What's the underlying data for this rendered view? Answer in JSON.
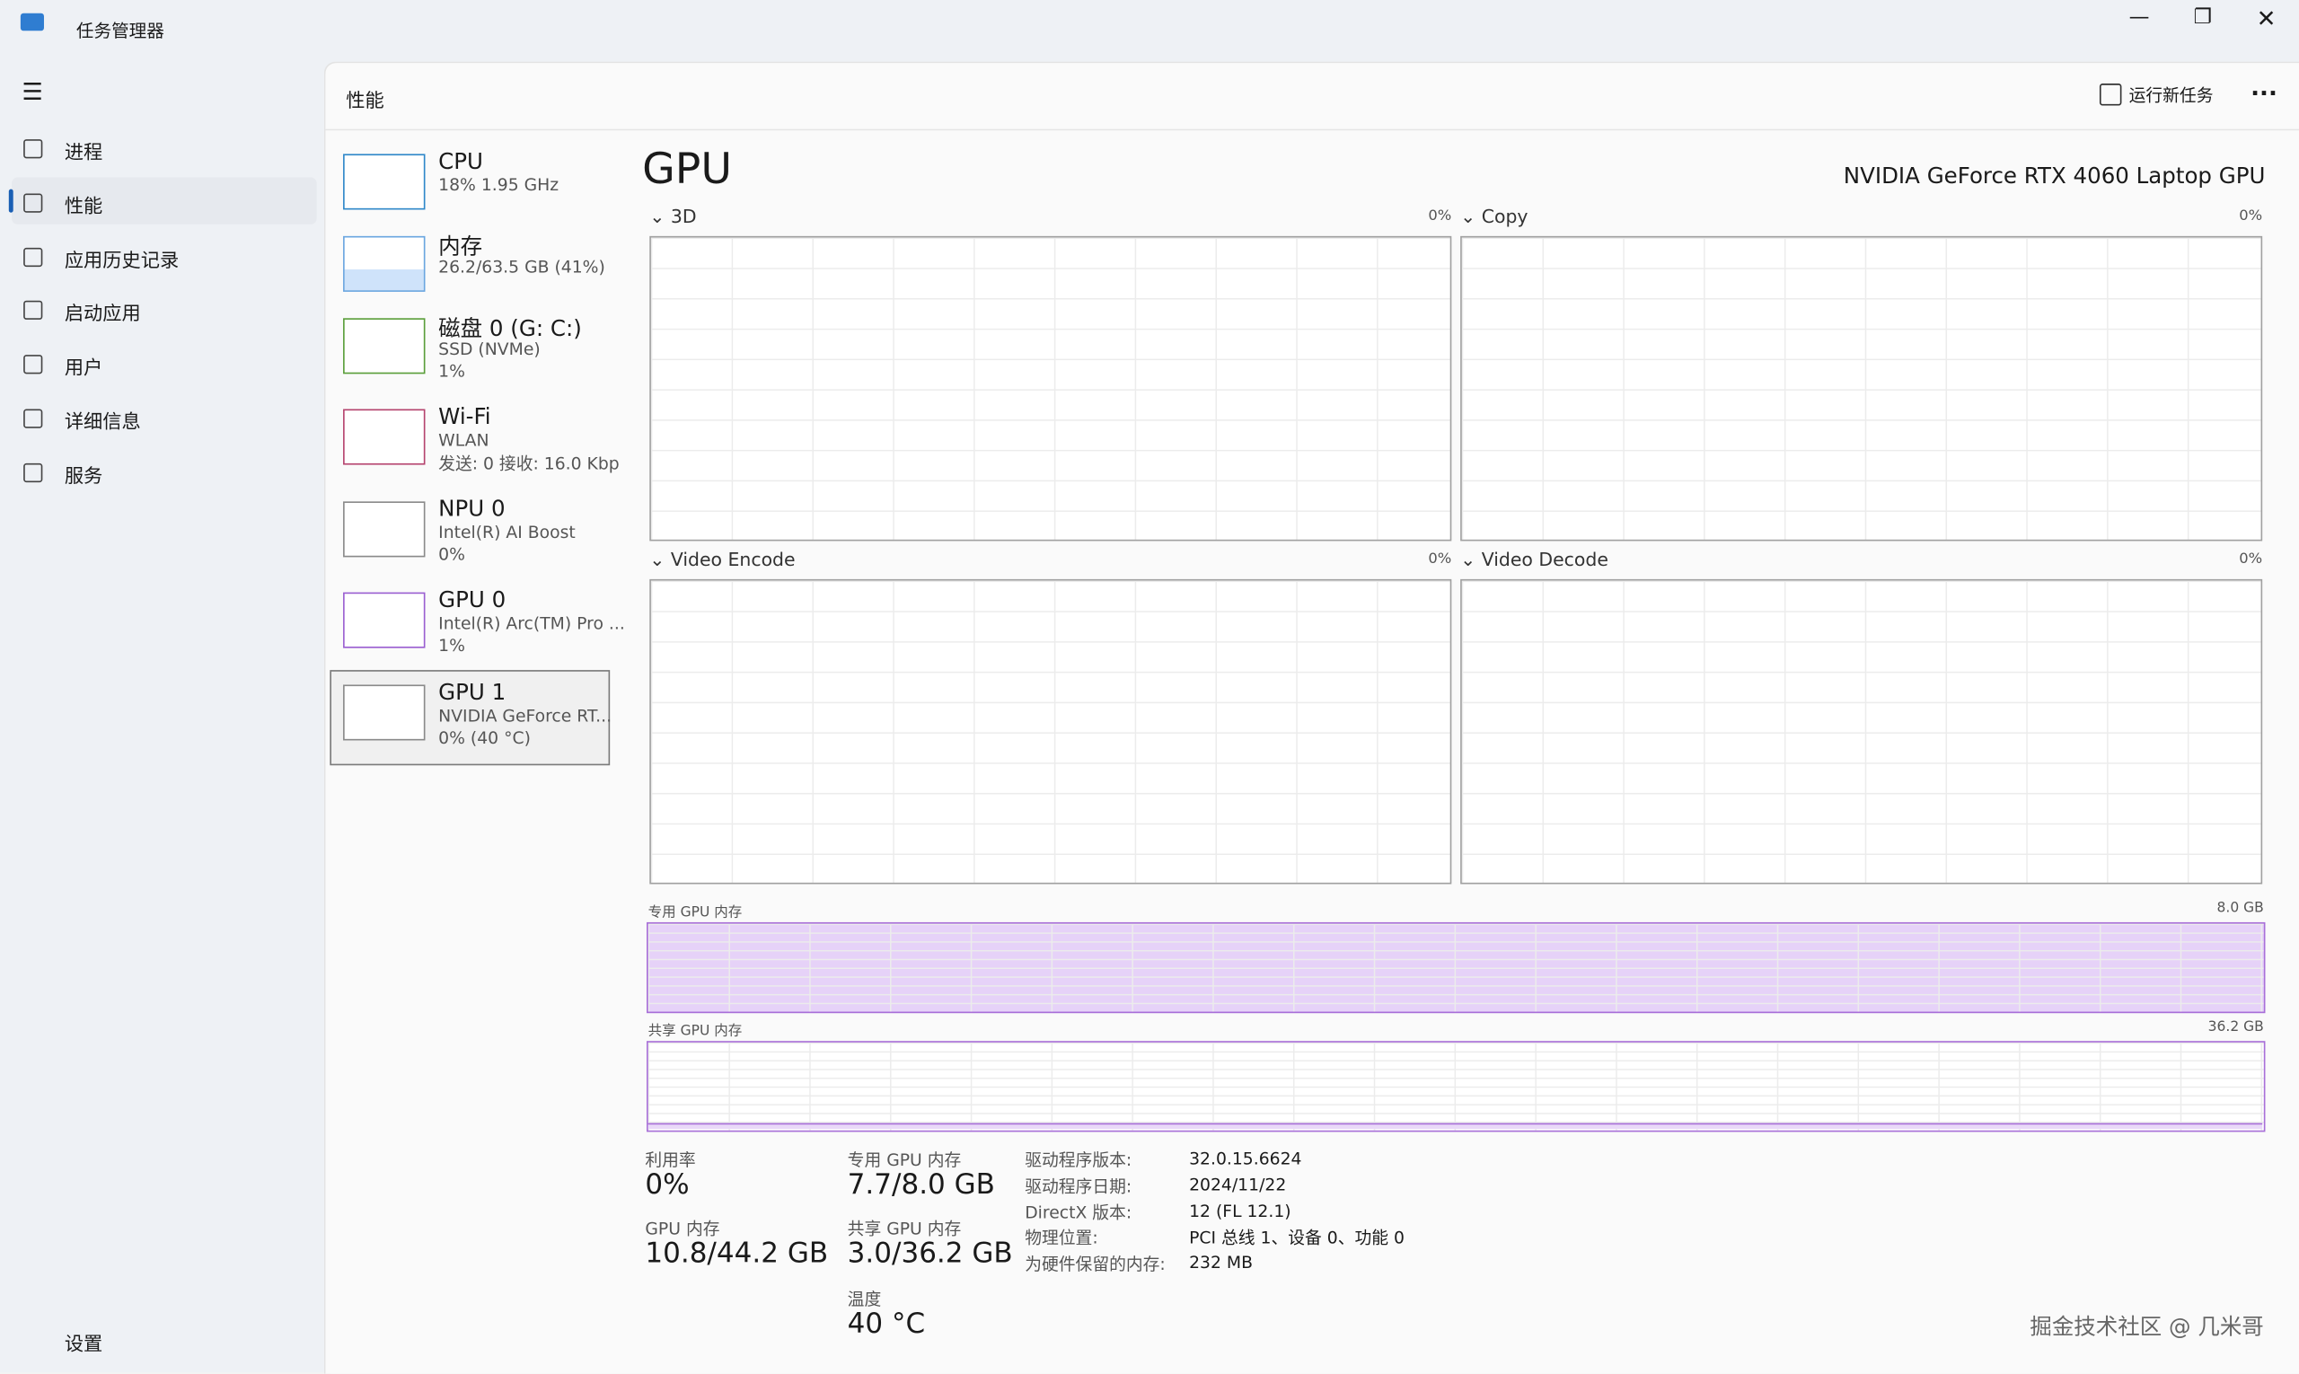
{
  "window": {
    "title": "任务管理器"
  },
  "nav": {
    "items": [
      "进程",
      "性能",
      "应用历史记录",
      "启动应用",
      "用户",
      "详细信息",
      "服务"
    ],
    "settings": "设置"
  },
  "header": {
    "title": "性能",
    "run_task": "运行新任务"
  },
  "devices": [
    {
      "name": "CPU",
      "lines": [
        "18%  1.95 GHz"
      ]
    },
    {
      "name": "内存",
      "lines": [
        "26.2/63.5 GB (41%)"
      ]
    },
    {
      "name": "磁盘 0 (G: C:)",
      "lines": [
        "SSD (NVMe)",
        "1%"
      ]
    },
    {
      "name": "Wi-Fi",
      "lines": [
        "WLAN",
        "发送: 0 接收: 16.0 Kbp"
      ]
    },
    {
      "name": "NPU 0",
      "lines": [
        "Intel(R) AI Boost",
        "0%"
      ]
    },
    {
      "name": "GPU 0",
      "lines": [
        "Intel(R) Arc(TM) Pro ...",
        "1%"
      ]
    },
    {
      "name": "GPU 1",
      "lines": [
        "NVIDIA GeForce RT...",
        "0% (40 °C)"
      ]
    }
  ],
  "gpu": {
    "title": "GPU",
    "model": "NVIDIA GeForce RTX 4060 Laptop GPU",
    "engines": [
      {
        "name": "3D",
        "value": "0%"
      },
      {
        "name": "Copy",
        "value": "0%"
      },
      {
        "name": "Video Encode",
        "value": "0%"
      },
      {
        "name": "Video Decode",
        "value": "0%"
      }
    ],
    "memory": [
      {
        "name": "专用 GPU 内存",
        "max": "8.0 GB"
      },
      {
        "name": "共享 GPU 内存",
        "max": "36.2 GB"
      }
    ],
    "stats": [
      {
        "label": "利用率",
        "value": "0%"
      },
      {
        "label": "GPU 内存",
        "value": "10.8/44.2 GB"
      },
      {
        "label": "专用 GPU 内存",
        "value": "7.7/8.0 GB"
      },
      {
        "label": "共享 GPU 内存",
        "value": "3.0/36.2 GB"
      },
      {
        "label": "温度",
        "value": "40 °C"
      }
    ],
    "details": [
      [
        "驱动程序版本:",
        "32.0.15.6624"
      ],
      [
        "驱动程序日期:",
        "2024/11/22"
      ],
      [
        "DirectX 版本:",
        "12 (FL 12.1)"
      ],
      [
        "物理位置:",
        "PCI 总线 1、设备 0、功能 0"
      ],
      [
        "为硬件保留的内存:",
        "232 MB"
      ]
    ]
  },
  "watermark": "掘金技术社区 @ 几米哥"
}
